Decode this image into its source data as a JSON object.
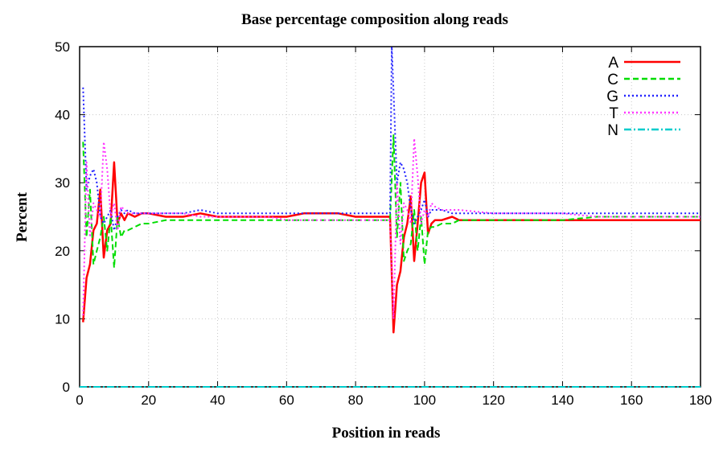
{
  "chart_data": {
    "type": "line",
    "title": "Base percentage composition  along reads",
    "xlabel": "Position in reads",
    "ylabel": "Percent",
    "xlim": [
      0,
      180
    ],
    "ylim": [
      0,
      50
    ],
    "xticks": [
      0,
      20,
      40,
      60,
      80,
      100,
      120,
      140,
      160,
      180
    ],
    "yticks": [
      0,
      10,
      20,
      30,
      40,
      50
    ],
    "grid": true,
    "legend_position": "top-right",
    "series": [
      {
        "name": "A",
        "color": "#ff0000",
        "dash": "solid",
        "x": [
          1,
          2,
          3,
          4,
          5,
          6,
          7,
          8,
          9,
          10,
          11,
          12,
          13,
          14,
          16,
          18,
          20,
          25,
          30,
          35,
          40,
          45,
          50,
          55,
          60,
          65,
          70,
          75,
          80,
          85,
          90,
          91,
          92,
          93,
          94,
          95,
          96,
          97,
          98,
          99,
          100,
          101,
          102,
          103,
          105,
          108,
          110,
          120,
          130,
          140,
          150,
          160,
          170,
          180
        ],
        "y": [
          9.5,
          16,
          18,
          23,
          24,
          29,
          19,
          23,
          24,
          33,
          24,
          25.5,
          24.5,
          25.5,
          25,
          25.5,
          25.5,
          25,
          25,
          25.5,
          25,
          25,
          25,
          25,
          25,
          25.5,
          25.5,
          25.5,
          25,
          25,
          25,
          8,
          15,
          17,
          22,
          24,
          28,
          18.5,
          24,
          30,
          31.5,
          22.5,
          24,
          24.5,
          24.5,
          25,
          24.5,
          24.5,
          24.5,
          24.5,
          24.5,
          24.5,
          24.5,
          24.5
        ]
      },
      {
        "name": "C",
        "color": "#00dd00",
        "dash": "dashed",
        "x": [
          1,
          2,
          3,
          4,
          5,
          6,
          7,
          8,
          9,
          10,
          11,
          12,
          13,
          14,
          16,
          18,
          20,
          25,
          30,
          35,
          40,
          45,
          50,
          55,
          60,
          65,
          70,
          75,
          80,
          85,
          90,
          91,
          92,
          93,
          94,
          95,
          96,
          97,
          98,
          99,
          100,
          101,
          102,
          103,
          105,
          108,
          110,
          120,
          130,
          140,
          150,
          160,
          170,
          180
        ],
        "y": [
          36,
          22,
          29,
          18,
          20,
          22,
          25,
          20,
          25,
          17.5,
          25,
          22,
          23,
          23,
          23.5,
          24,
          24,
          24.5,
          24.5,
          24.5,
          24.5,
          24.5,
          24.5,
          24.5,
          24.5,
          24.5,
          24.5,
          24.5,
          24.5,
          24.5,
          24.5,
          37,
          22,
          30,
          18.5,
          20,
          21,
          26,
          20,
          25,
          18,
          23,
          23.5,
          23.5,
          24,
          24,
          24.5,
          24.5,
          24.5,
          24.5,
          25,
          25,
          25,
          25
        ]
      },
      {
        "name": "G",
        "color": "#2222ff",
        "dash": "dotted",
        "x": [
          1,
          2,
          3,
          4,
          5,
          6,
          7,
          8,
          9,
          10,
          11,
          12,
          13,
          14,
          16,
          18,
          20,
          25,
          30,
          35,
          40,
          45,
          50,
          55,
          60,
          65,
          70,
          75,
          80,
          85,
          90,
          90.5,
          91,
          92,
          93,
          94,
          95,
          96,
          97,
          98,
          99,
          100,
          101,
          102,
          103,
          105,
          108,
          110,
          120,
          130,
          140,
          150,
          160,
          170,
          180
        ],
        "y": [
          44,
          29,
          31,
          32,
          30,
          25,
          24,
          25,
          26,
          23,
          25,
          26,
          25.5,
          26,
          25.5,
          25.5,
          25.5,
          25.5,
          25.5,
          26,
          25.5,
          25.5,
          25.5,
          25.5,
          25.5,
          25.5,
          25.5,
          25.5,
          25.5,
          25.5,
          25.5,
          50,
          43.5,
          30,
          33,
          32,
          30,
          26,
          24,
          25,
          26,
          27.5,
          25,
          26,
          26,
          26,
          25.5,
          25.5,
          25.5,
          25.5,
          25.5,
          25.5,
          25.5,
          25.5,
          25.5
        ]
      },
      {
        "name": "T",
        "color": "#ff33ff",
        "dash": "dotted",
        "x": [
          1,
          2,
          3,
          4,
          5,
          6,
          7,
          8,
          9,
          10,
          11,
          12,
          13,
          14,
          16,
          18,
          20,
          25,
          30,
          35,
          40,
          45,
          50,
          55,
          60,
          65,
          70,
          75,
          80,
          85,
          90,
          91,
          92,
          93,
          94,
          95,
          96,
          97,
          98,
          99,
          100,
          101,
          102,
          103,
          105,
          108,
          110,
          120,
          130,
          140,
          150,
          160,
          170,
          180
        ],
        "y": [
          10.5,
          33,
          22,
          27,
          26,
          25,
          36,
          32,
          25,
          27,
          23,
          26.5,
          26,
          25.5,
          25.5,
          25.5,
          25.5,
          25.5,
          25.5,
          25,
          25,
          25,
          25,
          25,
          24.5,
          24.5,
          24.5,
          24.5,
          24.5,
          24.5,
          24.5,
          10,
          30,
          21,
          27,
          26,
          24,
          36.5,
          31,
          24,
          26,
          25,
          27,
          26.5,
          26,
          26,
          26,
          25.5,
          25.5,
          25.5,
          25,
          25,
          25,
          25
        ]
      },
      {
        "name": "N",
        "color": "#00cccc",
        "dash": "dashdot",
        "x": [
          0,
          180
        ],
        "y": [
          0,
          0
        ]
      }
    ]
  }
}
